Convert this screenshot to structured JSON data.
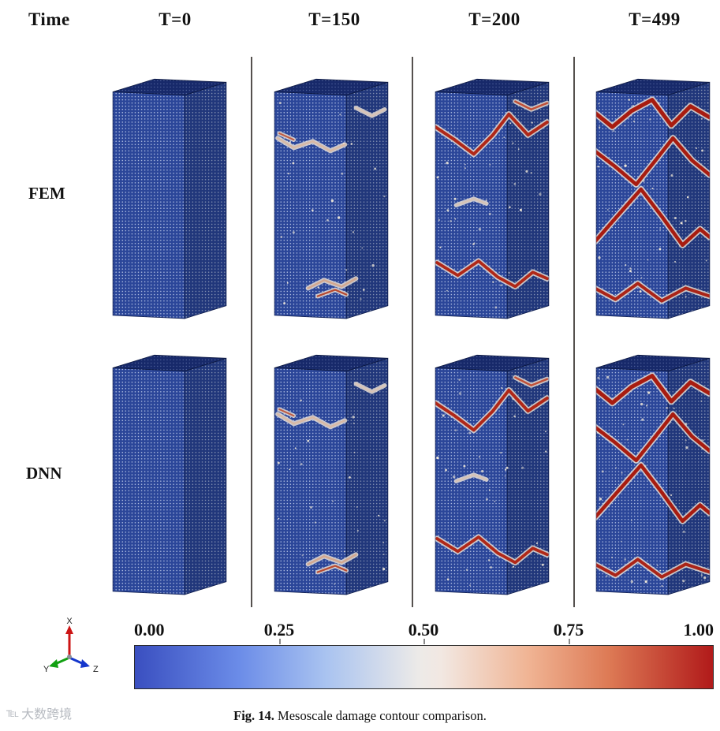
{
  "header": {
    "time_label": "Time",
    "columns": [
      "T=0",
      "T=150",
      "T=200",
      "T=499"
    ]
  },
  "rows": [
    {
      "label": "FEM"
    },
    {
      "label": "DNN"
    }
  ],
  "panels": [
    {
      "row": "FEM",
      "time": "T=0",
      "damage": "none"
    },
    {
      "row": "FEM",
      "time": "T=150",
      "damage": "minor"
    },
    {
      "row": "FEM",
      "time": "T=200",
      "damage": "moderate"
    },
    {
      "row": "FEM",
      "time": "T=499",
      "damage": "severe"
    },
    {
      "row": "DNN",
      "time": "T=0",
      "damage": "none"
    },
    {
      "row": "DNN",
      "time": "T=150",
      "damage": "minor"
    },
    {
      "row": "DNN",
      "time": "T=200",
      "damage": "moderate"
    },
    {
      "row": "DNN",
      "time": "T=499",
      "damage": "severe"
    }
  ],
  "pillar_colors": {
    "face_blue": "#2b4699",
    "mesh_dot": "#cdd9f2",
    "top_face": "#17296a",
    "edge": "#101f52"
  },
  "crack_patterns": {
    "none": [],
    "minor": [
      {
        "points": [
          [
            14,
            98
          ],
          [
            34,
            110
          ],
          [
            58,
            102
          ],
          [
            80,
            114
          ],
          [
            98,
            106
          ]
        ],
        "color": "#d9b9a4",
        "width": 2.5
      },
      {
        "points": [
          [
            16,
            92
          ],
          [
            34,
            100
          ]
        ],
        "color": "#c05c42",
        "width": 2
      },
      {
        "points": [
          [
            112,
            60
          ],
          [
            132,
            70
          ],
          [
            148,
            62
          ]
        ],
        "color": "#dcc4b4",
        "width": 2
      },
      {
        "points": [
          [
            52,
            286
          ],
          [
            72,
            276
          ],
          [
            94,
            284
          ],
          [
            112,
            274
          ]
        ],
        "color": "#d3a78e",
        "width": 2.5
      },
      {
        "points": [
          [
            64,
            296
          ],
          [
            86,
            288
          ],
          [
            100,
            294
          ]
        ],
        "color": "#b84a30",
        "width": 2.2
      }
    ],
    "moderate": [
      {
        "points": [
          [
            10,
            84
          ],
          [
            34,
            100
          ],
          [
            58,
            118
          ],
          [
            82,
            94
          ],
          [
            102,
            68
          ],
          [
            126,
            94
          ],
          [
            150,
            78
          ]
        ],
        "color": "#b02818",
        "width": 4
      },
      {
        "points": [
          [
            110,
            52
          ],
          [
            130,
            62
          ],
          [
            150,
            54
          ]
        ],
        "color": "#c05038",
        "width": 2.5
      },
      {
        "points": [
          [
            36,
            182
          ],
          [
            58,
            174
          ],
          [
            74,
            180
          ]
        ],
        "color": "#d8c2b2",
        "width": 2
      },
      {
        "points": [
          [
            12,
            254
          ],
          [
            38,
            270
          ],
          [
            64,
            252
          ],
          [
            88,
            272
          ],
          [
            110,
            284
          ],
          [
            132,
            266
          ],
          [
            150,
            274
          ]
        ],
        "color": "#b02818",
        "width": 3.8
      }
    ],
    "severe": [
      {
        "points": [
          [
            8,
            66
          ],
          [
            30,
            84
          ],
          [
            54,
            64
          ],
          [
            80,
            50
          ],
          [
            104,
            82
          ],
          [
            128,
            58
          ],
          [
            152,
            72
          ]
        ],
        "color": "#a81c10",
        "width": 5
      },
      {
        "points": [
          [
            8,
            114
          ],
          [
            34,
            134
          ],
          [
            60,
            156
          ],
          [
            84,
            126
          ],
          [
            106,
            98
          ],
          [
            130,
            126
          ],
          [
            152,
            144
          ]
        ],
        "color": "#a81c10",
        "width": 4.5
      },
      {
        "points": [
          [
            8,
            228
          ],
          [
            36,
            196
          ],
          [
            66,
            162
          ],
          [
            92,
            196
          ],
          [
            118,
            232
          ],
          [
            140,
            212
          ],
          [
            152,
            222
          ]
        ],
        "color": "#a81c10",
        "width": 4.5
      },
      {
        "points": [
          [
            8,
            286
          ],
          [
            34,
            300
          ],
          [
            62,
            280
          ],
          [
            92,
            302
          ],
          [
            122,
            286
          ],
          [
            152,
            296
          ]
        ],
        "color": "#aa2418",
        "width": 4
      }
    ]
  },
  "colorbar": {
    "ticks": [
      "0.00",
      "0.25",
      "0.50",
      "0.75",
      "1.00"
    ],
    "range": [
      0,
      1
    ],
    "gradient": [
      "#3a4fc0 0%",
      "#6b8ce8 18%",
      "#a9c3f0 33%",
      "#eceae8 49%",
      "#f2e8e2 53%",
      "#f0b494 68%",
      "#dd7a55 82%",
      "#b11a1a 100%"
    ]
  },
  "axes_triad": {
    "x": "X",
    "y": "Y",
    "z": "Z",
    "x_color": "#cc1414",
    "y_color": "#11a011",
    "z_color": "#1436cc"
  },
  "caption": {
    "prefix": "Fig. 14.",
    "text": "Mesoscale damage contour comparison."
  },
  "watermark": "大数跨境"
}
